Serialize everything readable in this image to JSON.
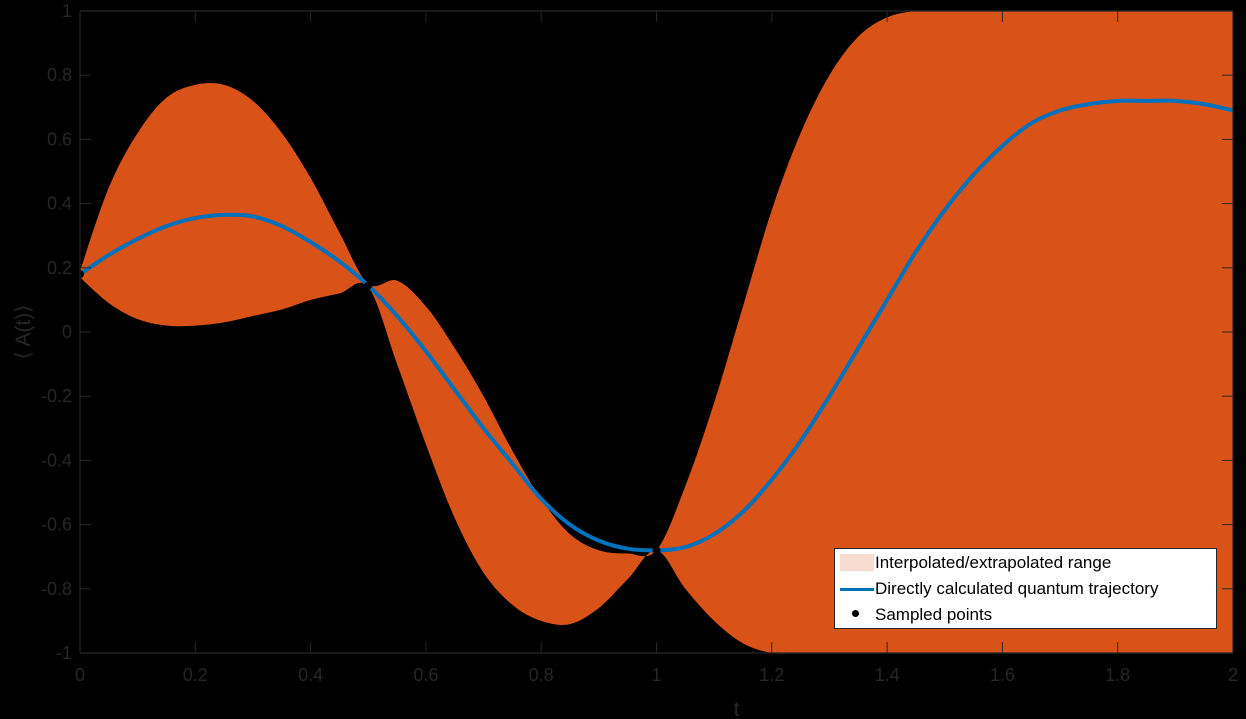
{
  "chart_data": {
    "type": "line",
    "title": "",
    "xlabel": "t",
    "ylabel": "⟨ A(t)⟩",
    "xlim": [
      0,
      2
    ],
    "ylim": [
      -1,
      1
    ],
    "xticks": [
      "0",
      "0.2",
      "0.4",
      "0.6",
      "0.8",
      "1",
      "1.2",
      "1.4",
      "1.6",
      "1.8",
      "2"
    ],
    "yticks": [
      "-1",
      "-0.8",
      "-0.6",
      "-0.4",
      "-0.2",
      "0",
      "0.2",
      "0.4",
      "0.6",
      "0.8",
      "1"
    ],
    "grid": false,
    "legend_position": "southeast",
    "x": [
      0,
      0.05,
      0.1,
      0.15,
      0.2,
      0.25,
      0.3,
      0.35,
      0.4,
      0.45,
      0.5,
      0.55,
      0.6,
      0.65,
      0.7,
      0.75,
      0.8,
      0.85,
      0.9,
      0.95,
      1.0,
      1.05,
      1.1,
      1.15,
      1.2,
      1.25,
      1.3,
      1.35,
      1.4,
      1.45,
      1.5,
      1.55,
      1.6,
      1.65,
      1.7,
      1.75,
      1.8,
      1.85,
      1.9,
      1.95,
      2.0
    ],
    "series": [
      {
        "name": "Interpolated/extrapolated range",
        "kind": "band",
        "color": "#D95319",
        "upper": [
          0.19,
          0.45,
          0.62,
          0.73,
          0.77,
          0.77,
          0.72,
          0.62,
          0.48,
          0.31,
          0.15,
          0.16,
          0.08,
          -0.05,
          -0.2,
          -0.37,
          -0.52,
          -0.63,
          -0.68,
          -0.69,
          -0.68,
          -0.48,
          -0.22,
          0.08,
          0.38,
          0.62,
          0.8,
          0.92,
          0.98,
          1.0,
          1.0,
          1.0,
          1.0,
          1.0,
          1.0,
          1.0,
          1.0,
          1.0,
          1.0,
          1.0,
          1.0
        ],
        "lower": [
          0.17,
          0.09,
          0.04,
          0.02,
          0.02,
          0.03,
          0.05,
          0.07,
          0.1,
          0.12,
          0.14,
          -0.1,
          -0.35,
          -0.58,
          -0.75,
          -0.85,
          -0.9,
          -0.91,
          -0.86,
          -0.77,
          -0.68,
          -0.8,
          -0.9,
          -0.97,
          -1.0,
          -1.0,
          -1.0,
          -1.0,
          -1.0,
          -1.0,
          -1.0,
          -1.0,
          -1.0,
          -1.0,
          -1.0,
          -1.0,
          -1.0,
          -1.0,
          -1.0,
          -1.0,
          -1.0
        ]
      },
      {
        "name": "Directly calculated quantum trajectory",
        "kind": "line",
        "color": "#0072BD",
        "values": [
          0.18,
          0.24,
          0.29,
          0.33,
          0.355,
          0.365,
          0.36,
          0.33,
          0.28,
          0.22,
          0.145,
          0.05,
          -0.06,
          -0.18,
          -0.3,
          -0.41,
          -0.52,
          -0.6,
          -0.65,
          -0.675,
          -0.68,
          -0.67,
          -0.63,
          -0.56,
          -0.46,
          -0.34,
          -0.2,
          -0.05,
          0.1,
          0.25,
          0.38,
          0.49,
          0.58,
          0.65,
          0.69,
          0.71,
          0.72,
          0.72,
          0.72,
          0.71,
          0.69
        ]
      },
      {
        "name": "Sampled points",
        "kind": "scatter",
        "color": "#000000",
        "points": [
          [
            0,
            0.18
          ],
          [
            0.5,
            0.145
          ],
          [
            1.0,
            -0.68
          ]
        ]
      }
    ]
  },
  "legend": {
    "items": [
      "Interpolated/extrapolated range",
      "Directly calculated quantum trajectory",
      "Sampled points"
    ],
    "fill_swatch": "#F7DDD1",
    "line_swatch": "#0072BD"
  }
}
